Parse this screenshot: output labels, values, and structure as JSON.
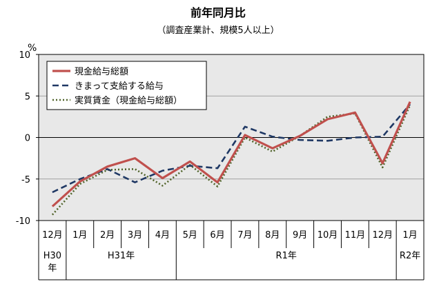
{
  "chart_data": {
    "type": "line",
    "title": "前年同月比",
    "subtitle": "（調査産業計、規模5人以上）",
    "ylabel": "%",
    "ylim": [
      -10,
      10
    ],
    "yticks": [
      10,
      5,
      0,
      -5,
      -10
    ],
    "grid": "horizontal",
    "legend_position": "top-left",
    "categories": [
      "12月",
      "1月",
      "2月",
      "3月",
      "4月",
      "5月",
      "6月",
      "7月",
      "8月",
      "9月",
      "10月",
      "11月",
      "12月",
      "1月"
    ],
    "year_groups": [
      {
        "label": "H30年",
        "start": 0,
        "end": 0
      },
      {
        "label": "H31年",
        "start": 1,
        "end": 4
      },
      {
        "label": "R1年",
        "start": 5,
        "end": 12
      },
      {
        "label": "R2年",
        "start": 13,
        "end": 13
      }
    ],
    "series": [
      {
        "name": "現金給与総額",
        "color": "#c0504d",
        "style": "solid",
        "values": [
          -8.3,
          -5.3,
          -3.5,
          -2.5,
          -4.9,
          -2.9,
          -5.4,
          0.3,
          -1.3,
          0.2,
          2.2,
          3.0,
          -3.1,
          4.3
        ]
      },
      {
        "name": "きまって支給する給与",
        "color": "#1f3864",
        "style": "dashed",
        "values": [
          -6.6,
          -5.0,
          -3.8,
          -5.4,
          -4.0,
          -3.4,
          -3.7,
          1.3,
          0.1,
          -0.3,
          -0.4,
          0.0,
          0.1,
          4.0
        ]
      },
      {
        "name": "実質賃金（現金給与総額）",
        "color": "#4f6228",
        "style": "dotted",
        "values": [
          -9.3,
          -5.6,
          -3.9,
          -3.8,
          -5.8,
          -3.3,
          -5.9,
          0.0,
          -1.7,
          0.2,
          2.5,
          2.9,
          -3.6,
          3.9
        ]
      }
    ]
  }
}
